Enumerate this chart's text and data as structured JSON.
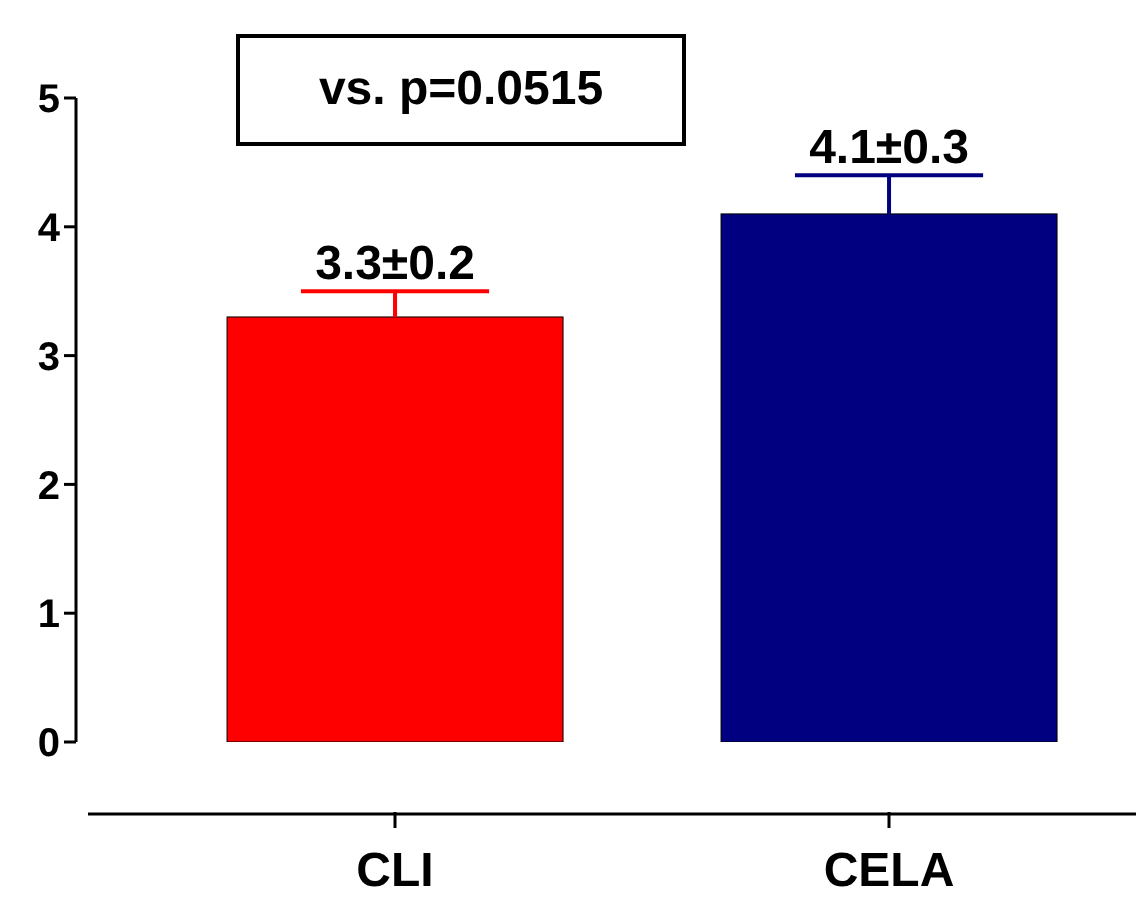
{
  "chart_data": {
    "type": "bar",
    "categories": [
      "CLI",
      "CELA"
    ],
    "values": [
      3.3,
      4.1
    ],
    "colors": [
      "#ff0000",
      "#000080"
    ],
    "errors": [
      0.2,
      0.3
    ],
    "value_labels": [
      "3.3±0.2",
      "4.1±0.3"
    ],
    "ylim": [
      0,
      5
    ],
    "yticks": [
      0,
      1,
      2,
      3,
      4,
      5
    ],
    "annotations": [
      "vs. p=0.0515"
    ],
    "grid": false,
    "legend": false
  }
}
